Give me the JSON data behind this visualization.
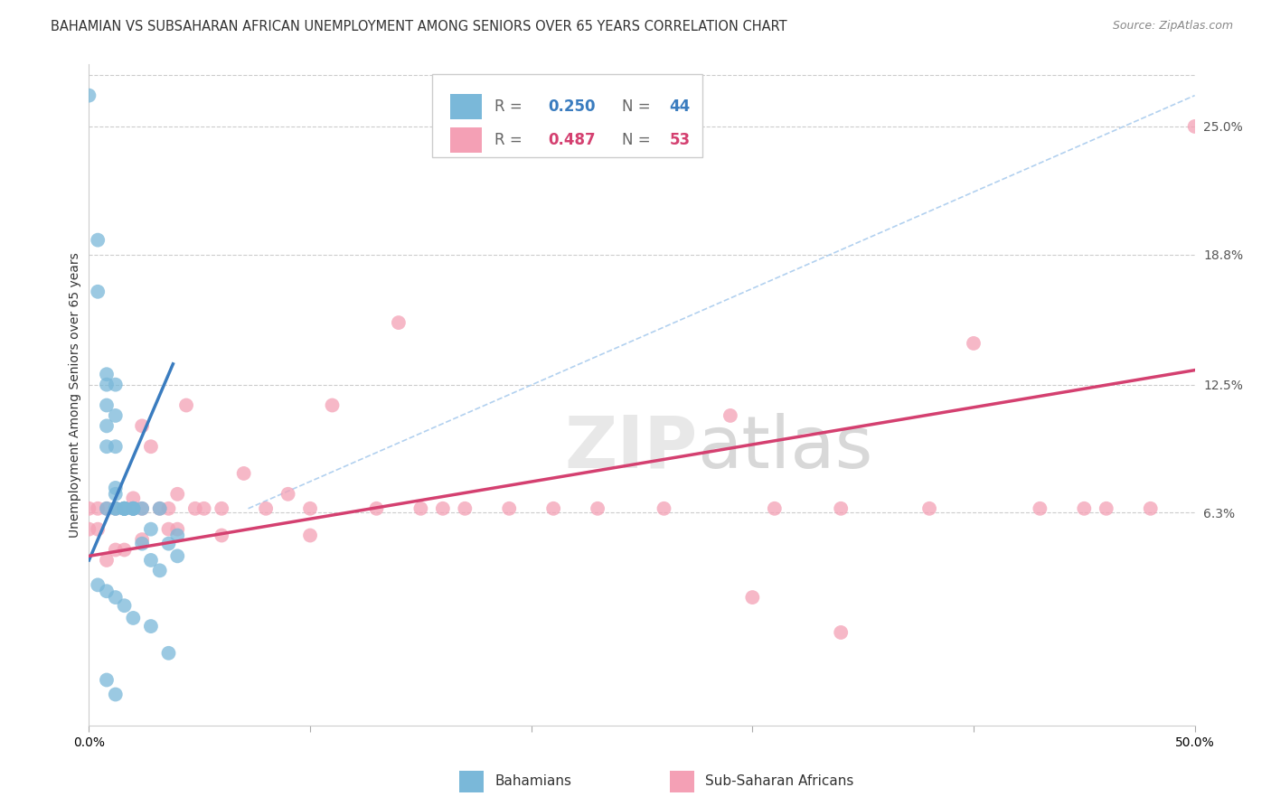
{
  "title": "BAHAMIAN VS SUBSAHARAN AFRICAN UNEMPLOYMENT AMONG SENIORS OVER 65 YEARS CORRELATION CHART",
  "source": "Source: ZipAtlas.com",
  "ylabel": "Unemployment Among Seniors over 65 years",
  "xlim": [
    0.0,
    0.5
  ],
  "ylim": [
    -0.04,
    0.28
  ],
  "ytick_labels_right": [
    "25.0%",
    "18.8%",
    "12.5%",
    "6.3%"
  ],
  "ytick_values_right": [
    0.25,
    0.188,
    0.125,
    0.063
  ],
  "legend_blue_r": "0.250",
  "legend_blue_n": "44",
  "legend_pink_r": "0.487",
  "legend_pink_n": "53",
  "blue_color": "#7ab8d9",
  "pink_color": "#f4a0b5",
  "blue_line_color": "#3a7cbf",
  "pink_line_color": "#d44070",
  "diagonal_color": "#aaccee",
  "background_color": "#ffffff",
  "grid_color": "#cccccc",
  "bahamian_x": [
    0.0,
    0.004,
    0.004,
    0.008,
    0.008,
    0.008,
    0.008,
    0.008,
    0.008,
    0.012,
    0.012,
    0.012,
    0.012,
    0.012,
    0.012,
    0.012,
    0.016,
    0.016,
    0.016,
    0.016,
    0.016,
    0.016,
    0.02,
    0.02,
    0.02,
    0.02,
    0.024,
    0.024,
    0.028,
    0.028,
    0.032,
    0.032,
    0.036,
    0.04,
    0.04,
    0.004,
    0.008,
    0.012,
    0.016,
    0.02,
    0.028,
    0.036,
    0.008,
    0.012
  ],
  "bahamian_y": [
    0.265,
    0.195,
    0.17,
    0.13,
    0.125,
    0.115,
    0.105,
    0.095,
    0.065,
    0.125,
    0.11,
    0.095,
    0.075,
    0.072,
    0.065,
    0.065,
    0.065,
    0.065,
    0.065,
    0.065,
    0.065,
    0.065,
    0.065,
    0.065,
    0.065,
    0.065,
    0.065,
    0.048,
    0.055,
    0.04,
    0.065,
    0.035,
    0.048,
    0.052,
    0.042,
    0.028,
    0.025,
    0.022,
    0.018,
    0.012,
    0.008,
    -0.005,
    -0.018,
    -0.025
  ],
  "subsaharan_x": [
    0.0,
    0.0,
    0.004,
    0.004,
    0.008,
    0.008,
    0.012,
    0.012,
    0.016,
    0.016,
    0.02,
    0.02,
    0.024,
    0.024,
    0.024,
    0.028,
    0.032,
    0.036,
    0.036,
    0.04,
    0.04,
    0.044,
    0.048,
    0.052,
    0.06,
    0.06,
    0.07,
    0.08,
    0.09,
    0.1,
    0.1,
    0.11,
    0.13,
    0.14,
    0.15,
    0.16,
    0.17,
    0.19,
    0.21,
    0.23,
    0.26,
    0.29,
    0.31,
    0.34,
    0.38,
    0.4,
    0.43,
    0.46,
    0.48,
    0.5,
    0.3,
    0.34,
    0.45
  ],
  "subsaharan_y": [
    0.065,
    0.055,
    0.065,
    0.055,
    0.065,
    0.04,
    0.065,
    0.045,
    0.065,
    0.045,
    0.07,
    0.065,
    0.065,
    0.105,
    0.05,
    0.095,
    0.065,
    0.065,
    0.055,
    0.072,
    0.055,
    0.115,
    0.065,
    0.065,
    0.065,
    0.052,
    0.082,
    0.065,
    0.072,
    0.065,
    0.052,
    0.115,
    0.065,
    0.155,
    0.065,
    0.065,
    0.065,
    0.065,
    0.065,
    0.065,
    0.065,
    0.11,
    0.065,
    0.065,
    0.065,
    0.145,
    0.065,
    0.065,
    0.065,
    0.25,
    0.022,
    0.005,
    0.065
  ],
  "blue_line_x": [
    0.0,
    0.038
  ],
  "blue_line_y": [
    0.04,
    0.135
  ],
  "pink_line_x": [
    0.0,
    0.5
  ],
  "pink_line_y": [
    0.042,
    0.132
  ],
  "diag_line_x": [
    0.072,
    0.5
  ],
  "diag_line_y": [
    0.065,
    0.265
  ],
  "title_fontsize": 10.5,
  "axis_fontsize": 10,
  "marker_size": 130
}
